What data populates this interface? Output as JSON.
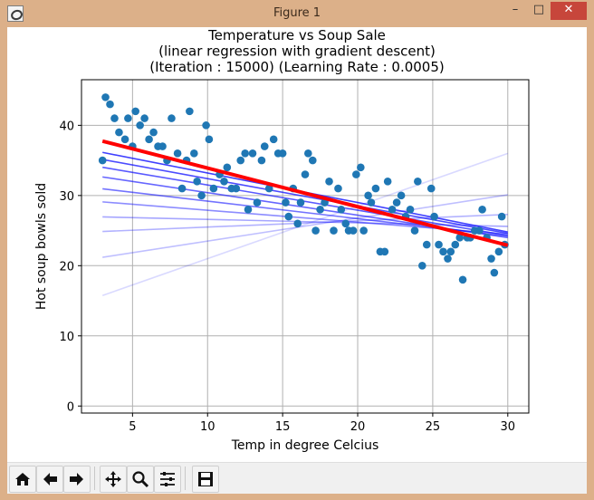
{
  "window": {
    "title": "Figure 1",
    "minimize": "–",
    "maximize": "□",
    "close": "✕"
  },
  "chart_data": {
    "type": "scatter",
    "title": [
      "Temperature vs Soup Sale",
      "(linear regression with gradient descent)",
      "(Iteration : 15000) (Learning Rate : 0.0005)"
    ],
    "xlabel": "Temp in degree Celcius",
    "ylabel": "Hot soup bowls sold",
    "xlim": [
      1.6,
      31.4
    ],
    "ylim": [
      -1.0,
      46.5
    ],
    "xticks": [
      5,
      10,
      15,
      20,
      25,
      30
    ],
    "yticks": [
      0,
      10,
      20,
      30,
      40
    ],
    "grid": true,
    "points": [
      [
        3.0,
        35
      ],
      [
        3.2,
        44
      ],
      [
        3.5,
        43
      ],
      [
        3.8,
        41
      ],
      [
        4.1,
        39
      ],
      [
        4.5,
        38
      ],
      [
        4.7,
        41
      ],
      [
        5.0,
        37
      ],
      [
        5.2,
        42
      ],
      [
        5.5,
        40
      ],
      [
        5.8,
        41
      ],
      [
        6.1,
        38
      ],
      [
        6.4,
        39
      ],
      [
        6.7,
        37
      ],
      [
        7.0,
        37
      ],
      [
        7.3,
        35
      ],
      [
        7.6,
        41
      ],
      [
        8.0,
        36
      ],
      [
        8.3,
        31
      ],
      [
        8.6,
        35
      ],
      [
        8.8,
        42
      ],
      [
        9.1,
        36
      ],
      [
        9.3,
        32
      ],
      [
        9.6,
        30
      ],
      [
        9.9,
        40
      ],
      [
        10.1,
        38
      ],
      [
        10.4,
        31
      ],
      [
        10.8,
        33
      ],
      [
        11.1,
        32
      ],
      [
        11.3,
        34
      ],
      [
        11.6,
        31
      ],
      [
        11.9,
        31
      ],
      [
        12.2,
        35
      ],
      [
        12.5,
        36
      ],
      [
        12.7,
        28
      ],
      [
        13.0,
        36
      ],
      [
        13.3,
        29
      ],
      [
        13.6,
        35
      ],
      [
        13.8,
        37
      ],
      [
        14.1,
        31
      ],
      [
        14.4,
        38
      ],
      [
        14.7,
        36
      ],
      [
        15.0,
        36
      ],
      [
        15.2,
        29
      ],
      [
        15.4,
        27
      ],
      [
        15.7,
        31
      ],
      [
        16.0,
        26
      ],
      [
        16.2,
        29
      ],
      [
        16.5,
        33
      ],
      [
        16.7,
        36
      ],
      [
        17.0,
        35
      ],
      [
        17.2,
        25
      ],
      [
        17.5,
        28
      ],
      [
        17.8,
        29
      ],
      [
        18.1,
        32
      ],
      [
        18.4,
        25
      ],
      [
        18.7,
        31
      ],
      [
        18.9,
        28
      ],
      [
        19.2,
        26
      ],
      [
        19.4,
        25
      ],
      [
        19.7,
        25
      ],
      [
        19.9,
        33
      ],
      [
        20.2,
        34
      ],
      [
        20.4,
        25
      ],
      [
        20.7,
        30
      ],
      [
        20.9,
        29
      ],
      [
        21.2,
        31
      ],
      [
        21.5,
        22
      ],
      [
        21.8,
        22
      ],
      [
        22.0,
        32
      ],
      [
        22.3,
        28
      ],
      [
        22.6,
        29
      ],
      [
        22.9,
        30
      ],
      [
        23.2,
        27
      ],
      [
        23.5,
        28
      ],
      [
        23.8,
        25
      ],
      [
        24.0,
        32
      ],
      [
        24.3,
        20
      ],
      [
        24.6,
        23
      ],
      [
        24.9,
        31
      ],
      [
        25.1,
        27
      ],
      [
        25.4,
        23
      ],
      [
        25.7,
        22
      ],
      [
        26.0,
        21
      ],
      [
        26.2,
        22
      ],
      [
        26.5,
        23
      ],
      [
        26.8,
        24
      ],
      [
        27.0,
        18
      ],
      [
        27.3,
        24
      ],
      [
        27.5,
        24
      ],
      [
        27.8,
        25
      ],
      [
        28.1,
        25
      ],
      [
        28.3,
        28
      ],
      [
        28.6,
        24
      ],
      [
        28.9,
        21
      ],
      [
        29.1,
        19
      ],
      [
        29.4,
        22
      ],
      [
        29.6,
        27
      ],
      [
        29.8,
        23
      ]
    ],
    "regression_history": [
      {
        "intercept": 13.5,
        "slope": 0.75,
        "opacity": 0.15
      },
      {
        "intercept": 20.2,
        "slope": 0.33,
        "opacity": 0.25
      },
      {
        "intercept": 24.6,
        "slope": 0.09,
        "opacity": 0.3
      },
      {
        "intercept": 27.1,
        "slope": -0.05,
        "opacity": 0.35
      },
      {
        "intercept": 29.6,
        "slope": -0.17,
        "opacity": 0.45
      },
      {
        "intercept": 31.7,
        "slope": -0.25,
        "opacity": 0.55
      },
      {
        "intercept": 33.6,
        "slope": -0.32,
        "opacity": 0.6
      },
      {
        "intercept": 35.1,
        "slope": -0.36,
        "opacity": 0.65
      },
      {
        "intercept": 36.3,
        "slope": -0.39,
        "opacity": 0.7
      },
      {
        "intercept": 37.4,
        "slope": -0.42,
        "opacity": 0.75
      }
    ],
    "final_fit": {
      "intercept": 39.4,
      "slope": -0.55
    },
    "colors": {
      "points": "#1f77b4",
      "history": "#0000ff",
      "fit": "#ff0000",
      "grid": "#b0b0b0"
    }
  },
  "toolbar": {
    "items": [
      {
        "name": "home-icon",
        "label": "Home"
      },
      {
        "name": "back-icon",
        "label": "Back"
      },
      {
        "name": "forward-icon",
        "label": "Forward"
      },
      {
        "name": "pan-icon",
        "label": "Pan"
      },
      {
        "name": "zoom-icon",
        "label": "Zoom"
      },
      {
        "name": "configure-subplots-icon",
        "label": "Subplots"
      },
      {
        "name": "save-icon",
        "label": "Save"
      }
    ]
  }
}
